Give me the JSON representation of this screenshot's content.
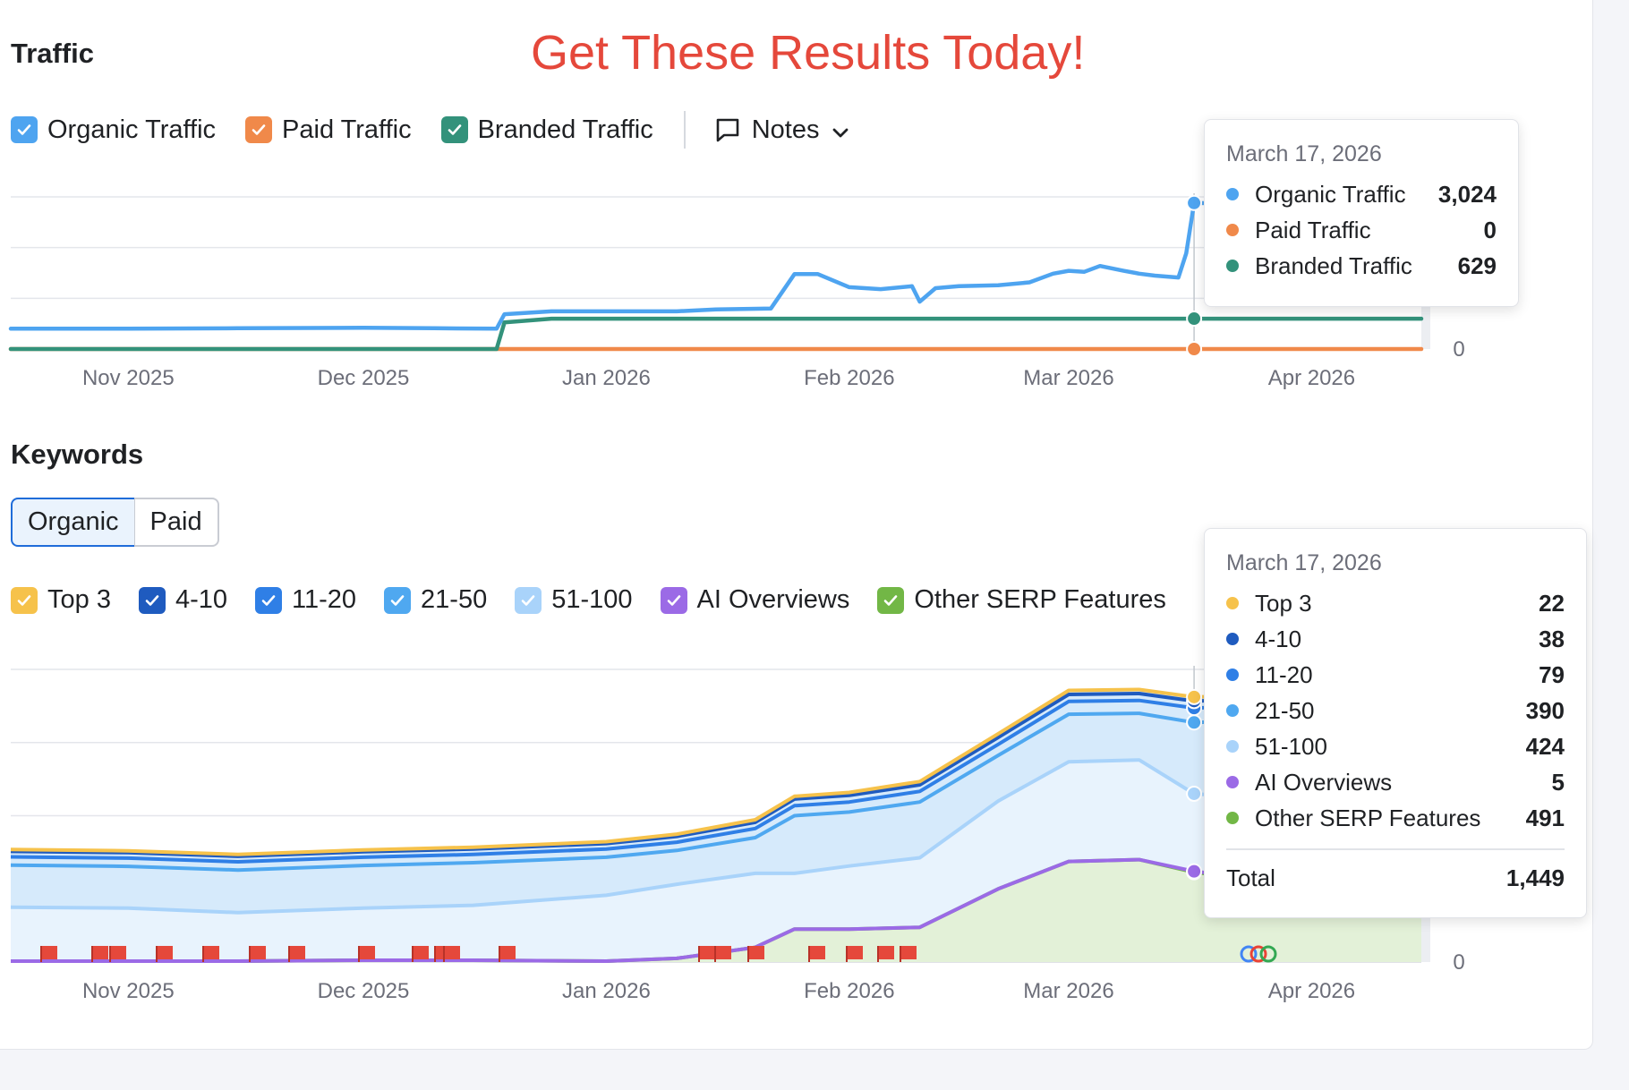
{
  "promo_text": "Get These Results Today!",
  "traffic": {
    "title": "Traffic",
    "legend": [
      {
        "label": "Organic Traffic",
        "color": "#4ea4f0"
      },
      {
        "label": "Paid Traffic",
        "color": "#f0894a"
      },
      {
        "label": "Branded Traffic",
        "color": "#33927b"
      }
    ],
    "notes_label": "Notes",
    "tooltip": {
      "date": "March 17, 2026",
      "rows": [
        {
          "label": "Organic Traffic",
          "value": "3,024",
          "color": "#4ea4f0"
        },
        {
          "label": "Paid Traffic",
          "value": "0",
          "color": "#f0894a"
        },
        {
          "label": "Branded Traffic",
          "value": "629",
          "color": "#33927b"
        }
      ]
    }
  },
  "keywords": {
    "title": "Keywords",
    "tabs": [
      "Organic",
      "Paid"
    ],
    "active_tab": "Organic",
    "legend": [
      {
        "label": "Top 3",
        "color": "#f6c24b"
      },
      {
        "label": "4-10",
        "color": "#1f5bbf"
      },
      {
        "label": "11-20",
        "color": "#2f7fe6"
      },
      {
        "label": "21-50",
        "color": "#4fa8f0"
      },
      {
        "label": "51-100",
        "color": "#a9d3fa"
      },
      {
        "label": "AI Overviews",
        "color": "#9b6ae6"
      },
      {
        "label": "Other SERP Features",
        "color": "#72b746"
      }
    ],
    "tooltip": {
      "date": "March 17, 2026",
      "rows": [
        {
          "label": "Top 3",
          "value": "22",
          "color": "#f6c24b"
        },
        {
          "label": "4-10",
          "value": "38",
          "color": "#1f5bbf"
        },
        {
          "label": "11-20",
          "value": "79",
          "color": "#2f7fe6"
        },
        {
          "label": "21-50",
          "value": "390",
          "color": "#4fa8f0"
        },
        {
          "label": "51-100",
          "value": "424",
          "color": "#a9d3fa"
        },
        {
          "label": "AI Overviews",
          "value": "5",
          "color": "#9b6ae6"
        },
        {
          "label": "Other SERP Features",
          "value": "491",
          "color": "#72b746"
        }
      ],
      "total_label": "Total",
      "total_value": "1,449"
    }
  },
  "chart_data": [
    {
      "type": "line",
      "title": "Traffic",
      "x_ticks": [
        "Nov 2025",
        "Dec 2025",
        "Jan 2026",
        "Feb 2026",
        "Mar 2026",
        "Apr 2026"
      ],
      "y_ticks": [
        "0"
      ],
      "ylim": [
        0,
        3150
      ],
      "grid": true,
      "x": [
        "2025-10-17",
        "2025-11-01",
        "2025-11-15",
        "2025-12-01",
        "2025-12-10",
        "2025-12-18",
        "2025-12-19",
        "2025-12-25",
        "2026-01-01",
        "2026-01-10",
        "2026-01-15",
        "2026-01-22",
        "2026-01-25",
        "2026-01-28",
        "2026-02-01",
        "2026-02-05",
        "2026-02-09",
        "2026-02-10",
        "2026-02-12",
        "2026-02-15",
        "2026-02-20",
        "2026-02-24",
        "2026-02-27",
        "2026-03-01",
        "2026-03-03",
        "2026-03-05",
        "2026-03-08",
        "2026-03-10",
        "2026-03-12",
        "2026-03-15",
        "2026-03-16",
        "2026-03-17",
        "2026-03-25",
        "2026-04-15"
      ],
      "series": [
        {
          "name": "Organic Traffic",
          "color": "#4ea4f0",
          "values": [
            420,
            420,
            430,
            440,
            430,
            420,
            720,
            780,
            780,
            780,
            820,
            840,
            1550,
            1550,
            1280,
            1240,
            1300,
            980,
            1260,
            1300,
            1320,
            1380,
            1560,
            1620,
            1600,
            1720,
            1620,
            1560,
            1520,
            1480,
            1980,
            3024,
            3000,
            2990
          ]
        },
        {
          "name": "Paid Traffic",
          "color": "#f0894a",
          "values": [
            0,
            0,
            0,
            0,
            0,
            0,
            0,
            0,
            0,
            0,
            0,
            0,
            0,
            0,
            0,
            0,
            0,
            0,
            0,
            0,
            0,
            0,
            0,
            0,
            0,
            0,
            0,
            0,
            0,
            0,
            0,
            0,
            0,
            0
          ]
        },
        {
          "name": "Branded Traffic",
          "color": "#33927b",
          "values": [
            0,
            0,
            0,
            0,
            0,
            0,
            550,
            629,
            629,
            629,
            629,
            629,
            629,
            629,
            629,
            629,
            629,
            629,
            629,
            629,
            629,
            629,
            629,
            629,
            629,
            629,
            629,
            629,
            629,
            629,
            629,
            629,
            629,
            629
          ]
        }
      ]
    },
    {
      "type": "area",
      "title": "Keywords",
      "stacked": true,
      "x_ticks": [
        "Nov 2025",
        "Dec 2025",
        "Jan 2026",
        "Feb 2026",
        "Mar 2026",
        "Apr 2026"
      ],
      "y_ticks": [
        "0"
      ],
      "ylim": [
        0,
        1600
      ],
      "grid": true,
      "x": [
        "2025-10-17",
        "2025-11-01",
        "2025-11-15",
        "2025-12-01",
        "2025-12-15",
        "2026-01-01",
        "2026-01-10",
        "2026-01-20",
        "2026-01-25",
        "2026-02-01",
        "2026-02-10",
        "2026-02-20",
        "2026-03-01",
        "2026-03-10",
        "2026-03-17",
        "2026-04-15"
      ],
      "series": [
        {
          "name": "Other SERP Features",
          "color": "#72b746",
          "values": [
            5,
            5,
            5,
            10,
            10,
            5,
            20,
            80,
            180,
            180,
            190,
            400,
            550,
            560,
            491,
            340
          ]
        },
        {
          "name": "AI Overviews",
          "color": "#9b6ae6",
          "values": [
            0,
            0,
            0,
            0,
            0,
            0,
            0,
            0,
            0,
            0,
            0,
            0,
            0,
            0,
            5,
            5
          ]
        },
        {
          "name": "51-100",
          "color": "#a9d3fa",
          "values": [
            295,
            290,
            265,
            285,
            300,
            360,
            405,
            405,
            305,
            345,
            380,
            480,
            545,
            545,
            424,
            495
          ]
        },
        {
          "name": "21-50",
          "color": "#4fa8f0",
          "values": [
            230,
            228,
            233,
            233,
            233,
            208,
            185,
            195,
            315,
            295,
            305,
            250,
            260,
            255,
            390,
            500
          ]
        },
        {
          "name": "11-20",
          "color": "#2f7fe6",
          "values": [
            45,
            45,
            45,
            45,
            45,
            45,
            45,
            50,
            55,
            55,
            58,
            60,
            70,
            70,
            79,
            80
          ]
        },
        {
          "name": "4-10",
          "color": "#1f5bbf",
          "values": [
            30,
            30,
            30,
            30,
            30,
            30,
            32,
            34,
            36,
            36,
            36,
            38,
            38,
            38,
            38,
            38
          ]
        },
        {
          "name": "Top 3",
          "color": "#f6c24b",
          "values": [
            10,
            10,
            10,
            10,
            10,
            10,
            12,
            14,
            15,
            16,
            18,
            20,
            22,
            22,
            22,
            22
          ]
        }
      ]
    }
  ]
}
